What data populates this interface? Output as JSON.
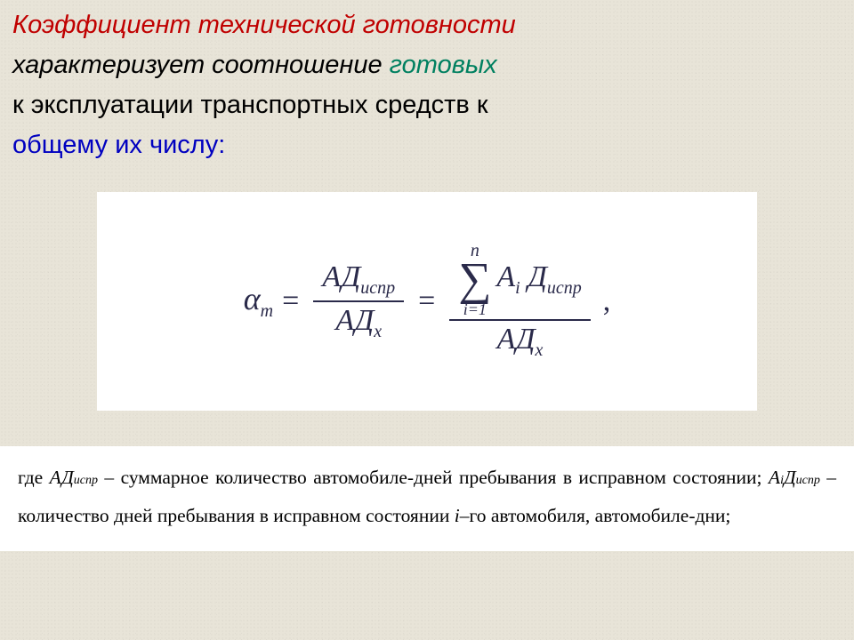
{
  "intro": {
    "term": "Коэффициент технической готовности",
    "describes": "характеризует соотношение",
    "ready": "готовых",
    "line3_a": "к",
    "line3_b": "эксплуатации",
    "line3_c": "транспортных",
    "line3_d": "средств",
    "line3_e": "к",
    "total": "общему их числу",
    "colon": ":",
    "colors": {
      "term": "#c00000",
      "describes": "#000000",
      "ready": "#008060",
      "plain": "#000000",
      "total": "#0000c0"
    },
    "fontsize": 29
  },
  "formula": {
    "lhs": "α",
    "lhs_sub": "m",
    "eq": "=",
    "frac1_num_main": "АД",
    "frac1_num_sub": "испр",
    "frac1_den_main": "АД",
    "frac1_den_sub": "х",
    "sum_upper": "n",
    "sum_lower": "i=1",
    "sum_term_main": "A",
    "sum_term_sub": "i",
    "sum_term_main2": "Д",
    "sum_term_sub2": "испр",
    "frac2_den_main": "АД",
    "frac2_den_sub": "х",
    "tail": ",",
    "box_bg": "#ffffff",
    "text_color": "#2a2a4a",
    "base_fontsize": 34
  },
  "legend": {
    "where": "где",
    "v1_main": "АД",
    "v1_sub": "испр",
    "v1_desc": " – суммарное количество автомобиле-дней пребывания в исправном состоянии;",
    "v2_main_a": "A",
    "v2_sub_a": "i",
    "v2_main_b": "Д",
    "v2_sub_b": "испр",
    "v2_desc_a": " – количество дней пребывания в исправном состоянии ",
    "v2_i": "i",
    "v2_desc_b": "–го автомобиля, автомобиле-дни;",
    "bg": "#ffffff",
    "fontsize": 21.5
  }
}
